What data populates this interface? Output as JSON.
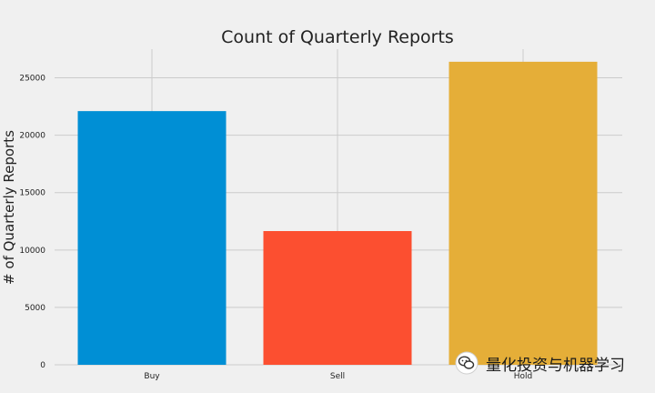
{
  "chart_data": {
    "type": "bar",
    "title": "Count of Quarterly Reports",
    "xlabel": "",
    "ylabel": "# of Quarterly Reports",
    "categories": [
      "Buy",
      "Sell",
      "Hold"
    ],
    "values": [
      22100,
      11650,
      26400
    ],
    "colors": [
      "#008fd5",
      "#fc4f30",
      "#e5ae38"
    ],
    "ylim": [
      0,
      27500
    ],
    "yticks": [
      0,
      5000,
      10000,
      15000,
      20000,
      25000
    ],
    "grid": true
  },
  "watermark": {
    "text": "量化投资与机器学习",
    "icon": "wechat-icon"
  }
}
